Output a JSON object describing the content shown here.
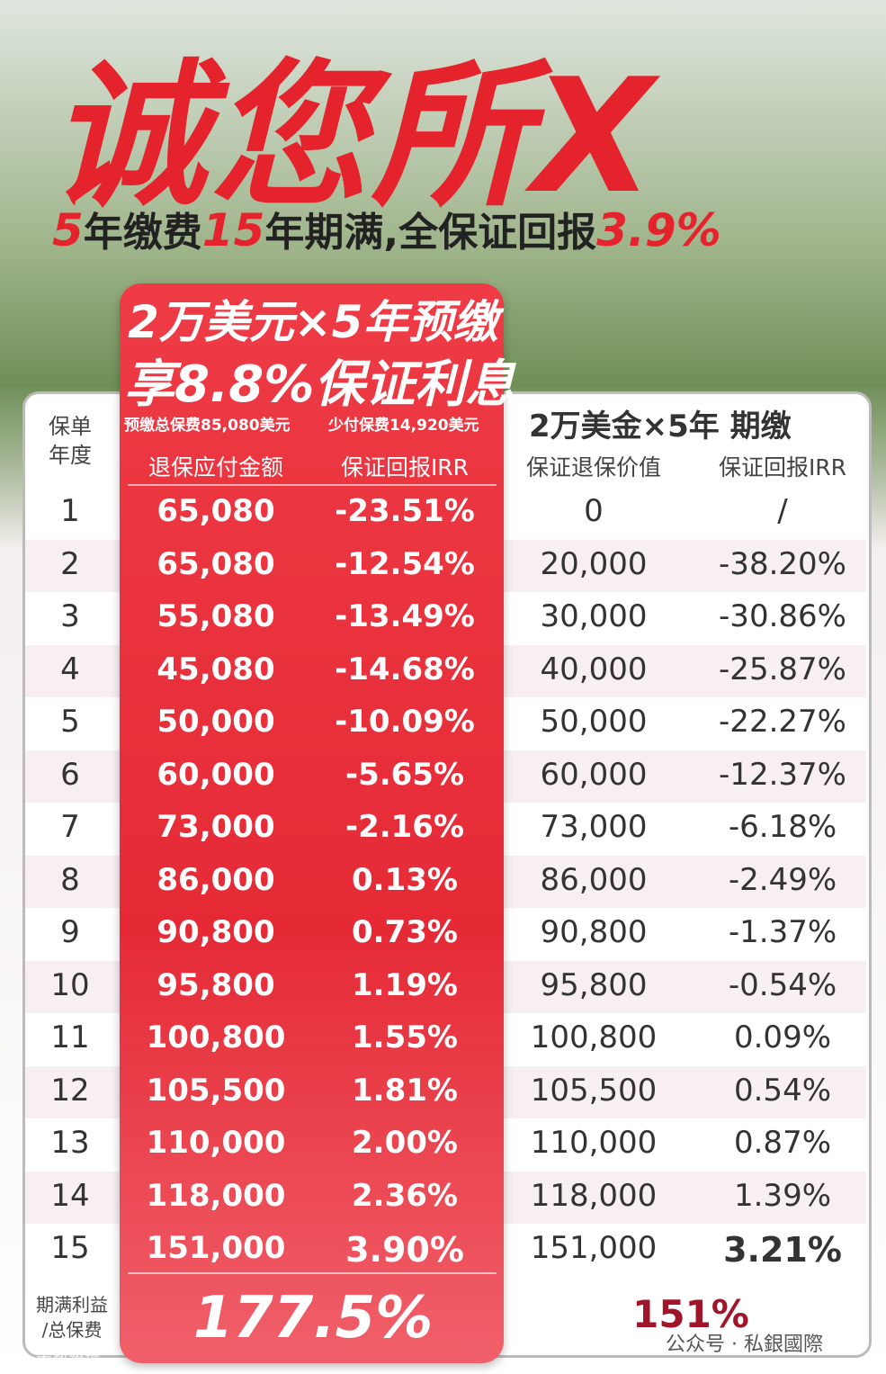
{
  "header": {
    "title": "诚您所X",
    "subtitle": [
      "5",
      "年缴费",
      "15",
      "年期满,全保证回报",
      "3.9%"
    ]
  },
  "promo": {
    "line1": "2万美元×5年预缴",
    "line2": "享8.8%保证利息",
    "note1": "预缴总保费85,080美元",
    "note2": "少付保费14,920美元"
  },
  "table": {
    "year_header": [
      "保单",
      "年度"
    ],
    "right_title": "2万美金×5年 期缴",
    "columns": [
      "退保应付金额",
      "保证回报IRR",
      "保证退保价值",
      "保证回报IRR"
    ],
    "rows": [
      [
        "1",
        "65,080",
        "-23.51%",
        "0",
        "/"
      ],
      [
        "2",
        "65,080",
        "-12.54%",
        "20,000",
        "-38.20%"
      ],
      [
        "3",
        "55,080",
        "-13.49%",
        "30,000",
        "-30.86%"
      ],
      [
        "4",
        "45,080",
        "-14.68%",
        "40,000",
        "-25.87%"
      ],
      [
        "5",
        "50,000",
        "-10.09%",
        "50,000",
        "-22.27%"
      ],
      [
        "6",
        "60,000",
        "-5.65%",
        "60,000",
        "-12.37%"
      ],
      [
        "7",
        "73,000",
        "-2.16%",
        "73,000",
        "-6.18%"
      ],
      [
        "8",
        "86,000",
        "0.13%",
        "86,000",
        "-2.49%"
      ],
      [
        "9",
        "90,800",
        "0.73%",
        "90,800",
        "-1.37%"
      ],
      [
        "10",
        "95,800",
        "1.19%",
        "95,800",
        "-0.54%"
      ],
      [
        "11",
        "100,800",
        "1.55%",
        "100,800",
        "0.09%"
      ],
      [
        "12",
        "105,500",
        "1.81%",
        "105,500",
        "0.54%"
      ],
      [
        "13",
        "110,000",
        "2.00%",
        "110,000",
        "0.87%"
      ],
      [
        "14",
        "118,000",
        "2.36%",
        "118,000",
        "1.39%"
      ],
      [
        "15",
        "151,000",
        "3.90%",
        "151,000",
        "3.21%"
      ]
    ],
    "footer_label": [
      "期满利益",
      "/总保费"
    ],
    "footer_left": "177.5%",
    "footer_right": "151%"
  },
  "watermark": {
    "right": "公众号 · 私銀國際",
    "left": "大数跨境"
  }
}
